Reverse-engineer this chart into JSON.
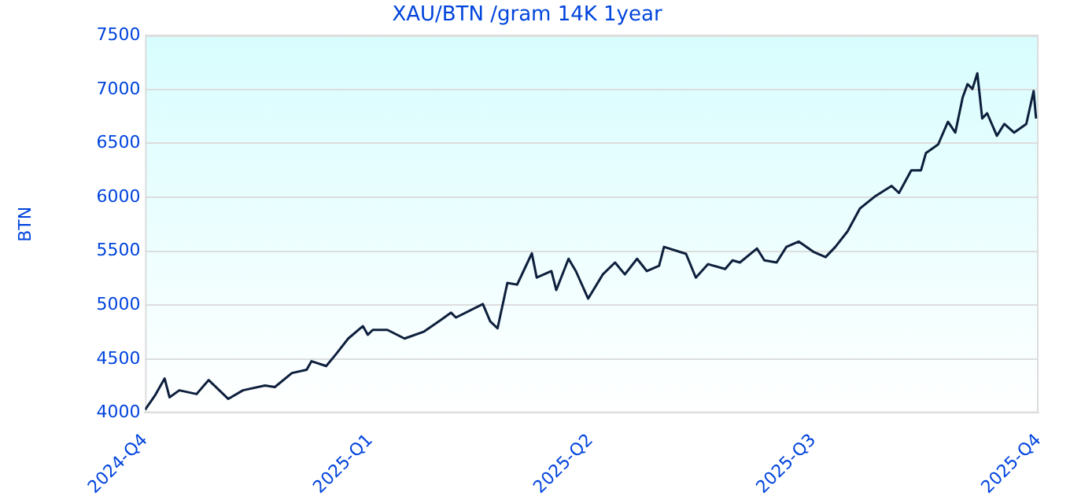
{
  "chart_data": {
    "type": "line",
    "title": "XAU/BTN /gram 14K 1year",
    "ylabel": "BTN",
    "xlim": [
      "2024-10-01",
      "2025-10-01"
    ],
    "xticks": [
      {
        "value": "2024-10-01",
        "label": "2024-Q4"
      },
      {
        "value": "2025-01-01",
        "label": "2025-Q1"
      },
      {
        "value": "2025-04-01",
        "label": "2025-Q2"
      },
      {
        "value": "2025-07-01",
        "label": "2025-Q3"
      },
      {
        "value": "2025-10-01",
        "label": "2025-Q4"
      }
    ],
    "ylim": [
      4000,
      7500
    ],
    "yticks": [
      4000,
      4500,
      5000,
      5500,
      6000,
      6500,
      7000,
      7500
    ],
    "grid": "y",
    "legend": false,
    "marker": "none",
    "line_style": "solid",
    "x": [
      "2024-10-01",
      "2024-10-05",
      "2024-10-09",
      "2024-10-11",
      "2024-10-15",
      "2024-10-22",
      "2024-10-27",
      "2024-11-04",
      "2024-11-10",
      "2024-11-19",
      "2024-11-23",
      "2024-11-30",
      "2024-12-06",
      "2024-12-08",
      "2024-12-14",
      "2024-12-18",
      "2024-12-23",
      "2024-12-29",
      "2024-12-31",
      "2025-01-02",
      "2025-01-08",
      "2025-01-15",
      "2025-01-23",
      "2025-01-30",
      "2025-02-03",
      "2025-02-05",
      "2025-02-16",
      "2025-02-19",
      "2025-02-22",
      "2025-02-26",
      "2025-03-02",
      "2025-03-05",
      "2025-03-08",
      "2025-03-10",
      "2025-03-16",
      "2025-03-18",
      "2025-03-23",
      "2025-03-26",
      "2025-03-31",
      "2025-04-06",
      "2025-04-11",
      "2025-04-15",
      "2025-04-20",
      "2025-04-24",
      "2025-04-29",
      "2025-05-01",
      "2025-05-10",
      "2025-05-14",
      "2025-05-19",
      "2025-05-26",
      "2025-05-29",
      "2025-06-01",
      "2025-06-08",
      "2025-06-11",
      "2025-06-16",
      "2025-06-20",
      "2025-06-25",
      "2025-07-01",
      "2025-07-06",
      "2025-07-10",
      "2025-07-15",
      "2025-07-20",
      "2025-07-26",
      "2025-08-02",
      "2025-08-05",
      "2025-08-10",
      "2025-08-14",
      "2025-08-16",
      "2025-08-21",
      "2025-08-25",
      "2025-08-28",
      "2025-08-31",
      "2025-09-02",
      "2025-09-04",
      "2025-09-06",
      "2025-09-08",
      "2025-09-10",
      "2025-09-14",
      "2025-09-17",
      "2025-09-21",
      "2025-09-26",
      "2025-09-29",
      "2025-09-30"
    ],
    "series": [
      {
        "color": "#0d1f3c",
        "values": [
          4030,
          4160,
          4320,
          4145,
          4210,
          4175,
          4305,
          4130,
          4210,
          4255,
          4240,
          4370,
          4400,
          4480,
          4435,
          4545,
          4690,
          4805,
          4725,
          4770,
          4770,
          4690,
          4755,
          4865,
          4930,
          4885,
          5010,
          4850,
          4785,
          5205,
          5190,
          5335,
          5480,
          5255,
          5315,
          5140,
          5430,
          5315,
          5060,
          5285,
          5395,
          5285,
          5430,
          5315,
          5365,
          5540,
          5475,
          5255,
          5380,
          5335,
          5415,
          5395,
          5525,
          5415,
          5395,
          5540,
          5590,
          5495,
          5445,
          5540,
          5685,
          5895,
          6005,
          6105,
          6040,
          6250,
          6250,
          6410,
          6490,
          6700,
          6600,
          6925,
          7050,
          7005,
          7150,
          6730,
          6780,
          6570,
          6680,
          6600,
          6680,
          6985,
          6730
        ]
      }
    ]
  }
}
